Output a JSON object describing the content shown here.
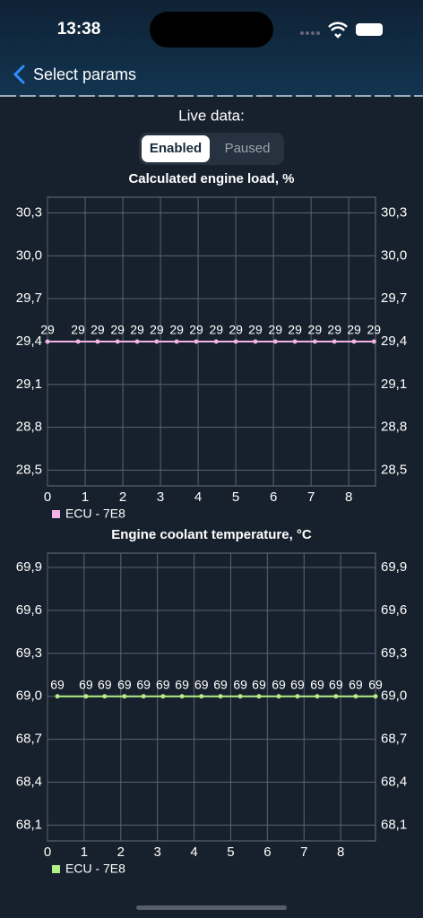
{
  "status_bar": {
    "time": "13:38"
  },
  "nav": {
    "back": "Select params"
  },
  "live_data": {
    "label": "Live data:",
    "options": [
      "Enabled",
      "Paused"
    ]
  },
  "chart_data": [
    {
      "type": "line",
      "title": "Calculated engine load, %",
      "x": [
        0,
        0.81,
        1.33,
        1.86,
        2.38,
        2.9,
        3.43,
        3.95,
        4.48,
        5.0,
        5.52,
        6.05,
        6.57,
        7.1,
        7.62,
        8.14,
        8.67
      ],
      "series": [
        {
          "name": "ECU - 7E8",
          "color": "#f2b3e6",
          "values": [
            29.4,
            29.4,
            29.4,
            29.4,
            29.4,
            29.4,
            29.4,
            29.4,
            29.4,
            29.4,
            29.4,
            29.4,
            29.4,
            29.4,
            29.4,
            29.4,
            29.4
          ],
          "value_labels": [
            "29",
            "29",
            "29",
            "29",
            "29",
            "29",
            "29",
            "29",
            "29",
            "29",
            "29",
            "29",
            "29",
            "29",
            "29",
            "29",
            "29"
          ]
        }
      ],
      "xlim": [
        0,
        8.71
      ],
      "xticks": [
        0,
        1,
        2,
        3,
        4,
        5,
        6,
        7,
        8
      ],
      "ylim": [
        28.39,
        30.41
      ],
      "yticks": [
        {
          "value": 28.5,
          "label": "28,5"
        },
        {
          "value": 28.8,
          "label": "28,8"
        },
        {
          "value": 29.1,
          "label": "29,1"
        },
        {
          "value": 29.4,
          "label": "29,4"
        },
        {
          "value": 29.7,
          "label": "29,7"
        },
        {
          "value": 30.0,
          "label": "30,0"
        },
        {
          "value": 30.3,
          "label": "30,3"
        }
      ],
      "grid": true
    },
    {
      "type": "line",
      "title": "Engine coolant temperature, °C",
      "x": [
        0.27,
        1.05,
        1.56,
        2.1,
        2.62,
        3.15,
        3.67,
        4.2,
        4.72,
        5.26,
        5.77,
        6.31,
        6.82,
        7.36,
        7.87,
        8.41,
        8.95
      ],
      "series": [
        {
          "name": "ECU - 7E8",
          "color": "#b4ee88",
          "values": [
            69.0,
            69.0,
            69.0,
            69.0,
            69.0,
            69.0,
            69.0,
            69.0,
            69.0,
            69.0,
            69.0,
            69.0,
            69.0,
            69.0,
            69.0,
            69.0,
            69.0
          ],
          "value_labels": [
            "69",
            "69",
            "69",
            "69",
            "69",
            "69",
            "69",
            "69",
            "69",
            "69",
            "69",
            "69",
            "69",
            "69",
            "69",
            "69",
            "69"
          ]
        }
      ],
      "xlim": [
        0,
        8.95
      ],
      "xticks": [
        0,
        1,
        2,
        3,
        4,
        5,
        6,
        7,
        8
      ],
      "ylim": [
        67.99,
        70.0
      ],
      "yticks": [
        {
          "value": 68.1,
          "label": "68,1"
        },
        {
          "value": 68.4,
          "label": "68,4"
        },
        {
          "value": 68.7,
          "label": "68,7"
        },
        {
          "value": 69.0,
          "label": "69,0"
        },
        {
          "value": 69.3,
          "label": "69,3"
        },
        {
          "value": 69.6,
          "label": "69,6"
        },
        {
          "value": 69.9,
          "label": "69,9"
        }
      ],
      "grid": true
    }
  ]
}
